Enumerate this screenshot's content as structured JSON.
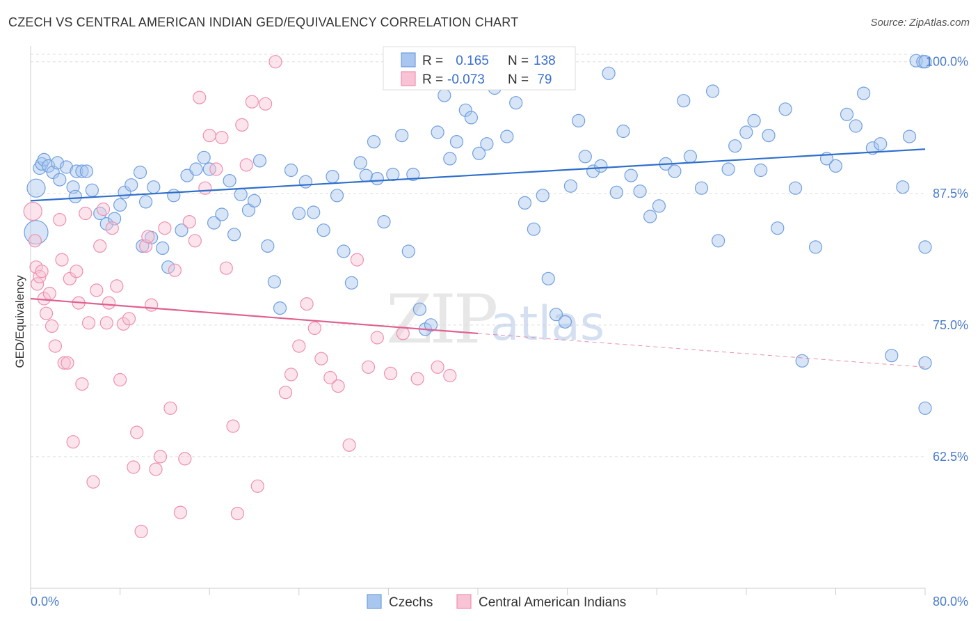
{
  "header": {
    "title": "CZECH VS CENTRAL AMERICAN INDIAN GED/EQUIVALENCY CORRELATION CHART",
    "source": "Source: ZipAtlas.com"
  },
  "watermark": {
    "zip": "ZIP",
    "atlas": "atlas"
  },
  "chart_data": {
    "type": "scatter",
    "title": "CZECH VS CENTRAL AMERICAN INDIAN GED/EQUIVALENCY CORRELATION CHART",
    "ylabel": "GED/Equivalency",
    "xlim": [
      0,
      80
    ],
    "ylim": [
      50,
      101.5
    ],
    "x_tick_labels": [
      "0.0%",
      "80.0%"
    ],
    "y_ticks": [
      62.5,
      75.0,
      87.5,
      100.0
    ],
    "y_tick_labels": [
      "62.5%",
      "75.0%",
      "87.5%",
      "100.0%"
    ],
    "grid": true,
    "legend_placement": "top-center",
    "stats_legend": [
      {
        "r_label": "R =",
        "r_value": " 0.165",
        "n_label": "N =",
        "n_value": "138"
      },
      {
        "r_label": "R =",
        "r_value": "-0.073",
        "n_label": "N =",
        "n_value": " 79"
      }
    ],
    "series": [
      {
        "name": "Czechs",
        "color": "#6f9fe0",
        "fill": "#a9c6ee",
        "line_color": "#2f6fcc",
        "trend": {
          "x0": 0,
          "y0": 86.8,
          "x1": 80,
          "y1": 91.7
        },
        "points": [
          [
            0.5,
            88.0
          ],
          [
            0.5,
            83.8
          ],
          [
            0.8,
            89.9
          ],
          [
            1.0,
            90.3
          ],
          [
            1.2,
            90.7
          ],
          [
            1.6,
            90.1
          ],
          [
            2.0,
            89.5
          ],
          [
            2.4,
            90.4
          ],
          [
            2.6,
            88.8
          ],
          [
            3.2,
            90.0
          ],
          [
            3.8,
            88.1
          ],
          [
            4.1,
            89.6
          ],
          [
            4.6,
            89.6
          ],
          [
            5.0,
            89.6
          ],
          [
            5.5,
            87.8
          ],
          [
            4.0,
            87.2
          ],
          [
            6.2,
            85.6
          ],
          [
            6.8,
            84.6
          ],
          [
            7.5,
            85.1
          ],
          [
            8.0,
            86.4
          ],
          [
            8.4,
            87.6
          ],
          [
            9.0,
            88.3
          ],
          [
            9.8,
            89.5
          ],
          [
            10.3,
            86.7
          ],
          [
            10.0,
            82.5
          ],
          [
            10.8,
            83.3
          ],
          [
            11.0,
            88.1
          ],
          [
            11.8,
            82.3
          ],
          [
            12.3,
            80.5
          ],
          [
            12.8,
            87.3
          ],
          [
            13.5,
            84.0
          ],
          [
            14.0,
            89.2
          ],
          [
            14.8,
            89.8
          ],
          [
            15.5,
            90.9
          ],
          [
            16.0,
            89.8
          ],
          [
            16.4,
            84.7
          ],
          [
            17.1,
            85.5
          ],
          [
            17.8,
            88.7
          ],
          [
            18.2,
            83.6
          ],
          [
            18.8,
            87.4
          ],
          [
            19.5,
            85.9
          ],
          [
            20.0,
            86.8
          ],
          [
            20.5,
            90.6
          ],
          [
            21.2,
            82.5
          ],
          [
            21.8,
            79.1
          ],
          [
            22.3,
            76.6
          ],
          [
            23.3,
            89.7
          ],
          [
            24.0,
            85.6
          ],
          [
            24.6,
            88.6
          ],
          [
            25.3,
            85.7
          ],
          [
            26.2,
            84.0
          ],
          [
            27.0,
            89.1
          ],
          [
            27.4,
            87.3
          ],
          [
            28.0,
            82.0
          ],
          [
            28.7,
            79.0
          ],
          [
            29.5,
            90.4
          ],
          [
            30.0,
            89.2
          ],
          [
            30.7,
            92.4
          ],
          [
            31.0,
            88.9
          ],
          [
            31.6,
            84.8
          ],
          [
            32.4,
            89.3
          ],
          [
            33.2,
            93.0
          ],
          [
            33.8,
            82.0
          ],
          [
            34.2,
            89.3
          ],
          [
            34.8,
            76.5
          ],
          [
            35.3,
            74.6
          ],
          [
            35.8,
            75.0
          ],
          [
            36.4,
            93.3
          ],
          [
            37.0,
            96.8
          ],
          [
            37.5,
            90.8
          ],
          [
            38.1,
            92.4
          ],
          [
            38.9,
            95.4
          ],
          [
            39.4,
            94.7
          ],
          [
            40.1,
            91.3
          ],
          [
            40.8,
            92.2
          ],
          [
            41.5,
            97.5
          ],
          [
            42.0,
            98.3
          ],
          [
            42.6,
            92.9
          ],
          [
            43.4,
            96.1
          ],
          [
            44.2,
            86.6
          ],
          [
            45.0,
            84.1
          ],
          [
            45.8,
            87.3
          ],
          [
            46.3,
            79.4
          ],
          [
            47.0,
            76.0
          ],
          [
            47.8,
            75.3
          ],
          [
            48.3,
            88.2
          ],
          [
            49.0,
            94.4
          ],
          [
            49.6,
            91.0
          ],
          [
            50.3,
            89.6
          ],
          [
            51.0,
            90.1
          ],
          [
            51.7,
            98.9
          ],
          [
            52.4,
            87.6
          ],
          [
            53.0,
            93.4
          ],
          [
            53.7,
            89.2
          ],
          [
            54.5,
            87.7
          ],
          [
            55.4,
            85.3
          ],
          [
            56.2,
            86.3
          ],
          [
            56.8,
            90.3
          ],
          [
            57.6,
            89.6
          ],
          [
            58.4,
            96.3
          ],
          [
            59.0,
            91.0
          ],
          [
            60.0,
            88.0
          ],
          [
            61.0,
            97.2
          ],
          [
            61.5,
            83.0
          ],
          [
            62.4,
            89.8
          ],
          [
            63.0,
            92.0
          ],
          [
            64.0,
            93.3
          ],
          [
            64.7,
            94.4
          ],
          [
            65.3,
            89.7
          ],
          [
            66.0,
            93.0
          ],
          [
            66.8,
            84.2
          ],
          [
            67.5,
            95.5
          ],
          [
            68.4,
            88.0
          ],
          [
            69.0,
            71.6
          ],
          [
            70.2,
            82.4
          ],
          [
            71.2,
            90.8
          ],
          [
            72.0,
            90.1
          ],
          [
            73.0,
            95.0
          ],
          [
            73.8,
            93.9
          ],
          [
            74.5,
            97.0
          ],
          [
            75.3,
            91.8
          ],
          [
            76.0,
            92.2
          ],
          [
            77.0,
            72.1
          ],
          [
            78.0,
            88.1
          ],
          [
            78.6,
            92.9
          ],
          [
            79.2,
            100.1
          ],
          [
            79.8,
            100.0
          ],
          [
            80.0,
            100.0
          ],
          [
            80.0,
            71.4
          ],
          [
            80.0,
            82.4
          ],
          [
            80.0,
            67.1
          ]
        ]
      },
      {
        "name": "Central American Indians",
        "color": "#ef8fb0",
        "fill": "#f7c3d5",
        "line_color": "#e0608f",
        "trend": {
          "x0": 0,
          "y0": 77.5,
          "x1": 40,
          "y1": 74.2
        },
        "trend_dashed": {
          "x0": 40,
          "y0": 74.2,
          "x1": 80,
          "y1": 71.0
        },
        "points": [
          [
            0.2,
            85.8
          ],
          [
            0.4,
            83.0
          ],
          [
            0.5,
            80.5
          ],
          [
            0.6,
            78.9
          ],
          [
            0.8,
            79.6
          ],
          [
            1.0,
            80.1
          ],
          [
            1.2,
            77.5
          ],
          [
            1.4,
            76.1
          ],
          [
            1.7,
            78.0
          ],
          [
            1.9,
            74.9
          ],
          [
            2.2,
            73.0
          ],
          [
            2.6,
            85.0
          ],
          [
            2.8,
            81.2
          ],
          [
            3.0,
            71.4
          ],
          [
            3.3,
            71.4
          ],
          [
            3.5,
            79.4
          ],
          [
            3.8,
            63.9
          ],
          [
            4.1,
            80.1
          ],
          [
            4.3,
            77.1
          ],
          [
            4.6,
            69.4
          ],
          [
            4.9,
            85.6
          ],
          [
            5.2,
            75.2
          ],
          [
            5.6,
            60.1
          ],
          [
            5.9,
            78.3
          ],
          [
            6.2,
            82.5
          ],
          [
            6.5,
            86.0
          ],
          [
            6.8,
            75.2
          ],
          [
            7.0,
            77.1
          ],
          [
            7.3,
            84.2
          ],
          [
            7.7,
            78.7
          ],
          [
            8.0,
            69.8
          ],
          [
            8.3,
            75.1
          ],
          [
            8.8,
            75.6
          ],
          [
            9.2,
            61.5
          ],
          [
            9.5,
            64.8
          ],
          [
            9.9,
            55.4
          ],
          [
            10.3,
            82.5
          ],
          [
            10.5,
            83.4
          ],
          [
            10.8,
            76.9
          ],
          [
            11.2,
            61.3
          ],
          [
            11.6,
            62.5
          ],
          [
            12.0,
            84.2
          ],
          [
            12.5,
            67.1
          ],
          [
            12.9,
            80.2
          ],
          [
            13.4,
            57.2
          ],
          [
            13.8,
            62.3
          ],
          [
            14.2,
            84.8
          ],
          [
            14.7,
            83.0
          ],
          [
            15.1,
            96.6
          ],
          [
            15.6,
            88.0
          ],
          [
            16.0,
            93.0
          ],
          [
            16.6,
            89.8
          ],
          [
            17.1,
            92.8
          ],
          [
            17.5,
            80.4
          ],
          [
            18.1,
            65.4
          ],
          [
            18.5,
            57.1
          ],
          [
            18.9,
            94.0
          ],
          [
            19.3,
            90.2
          ],
          [
            19.8,
            96.2
          ],
          [
            20.3,
            59.7
          ],
          [
            21.0,
            96.0
          ],
          [
            21.9,
            100.0
          ],
          [
            22.8,
            68.6
          ],
          [
            23.3,
            70.3
          ],
          [
            24.0,
            73.0
          ],
          [
            24.7,
            77.0
          ],
          [
            25.4,
            74.7
          ],
          [
            26.0,
            71.8
          ],
          [
            26.8,
            70.0
          ],
          [
            27.5,
            69.2
          ],
          [
            28.5,
            63.6
          ],
          [
            29.2,
            81.2
          ],
          [
            30.2,
            71.0
          ],
          [
            31.0,
            73.8
          ],
          [
            32.2,
            70.4
          ],
          [
            33.3,
            74.2
          ],
          [
            34.6,
            69.9
          ],
          [
            36.4,
            71.0
          ],
          [
            37.5,
            70.2
          ]
        ]
      }
    ]
  },
  "bottom_legend": {
    "czechs": "Czechs",
    "cai": "Central American Indians"
  }
}
